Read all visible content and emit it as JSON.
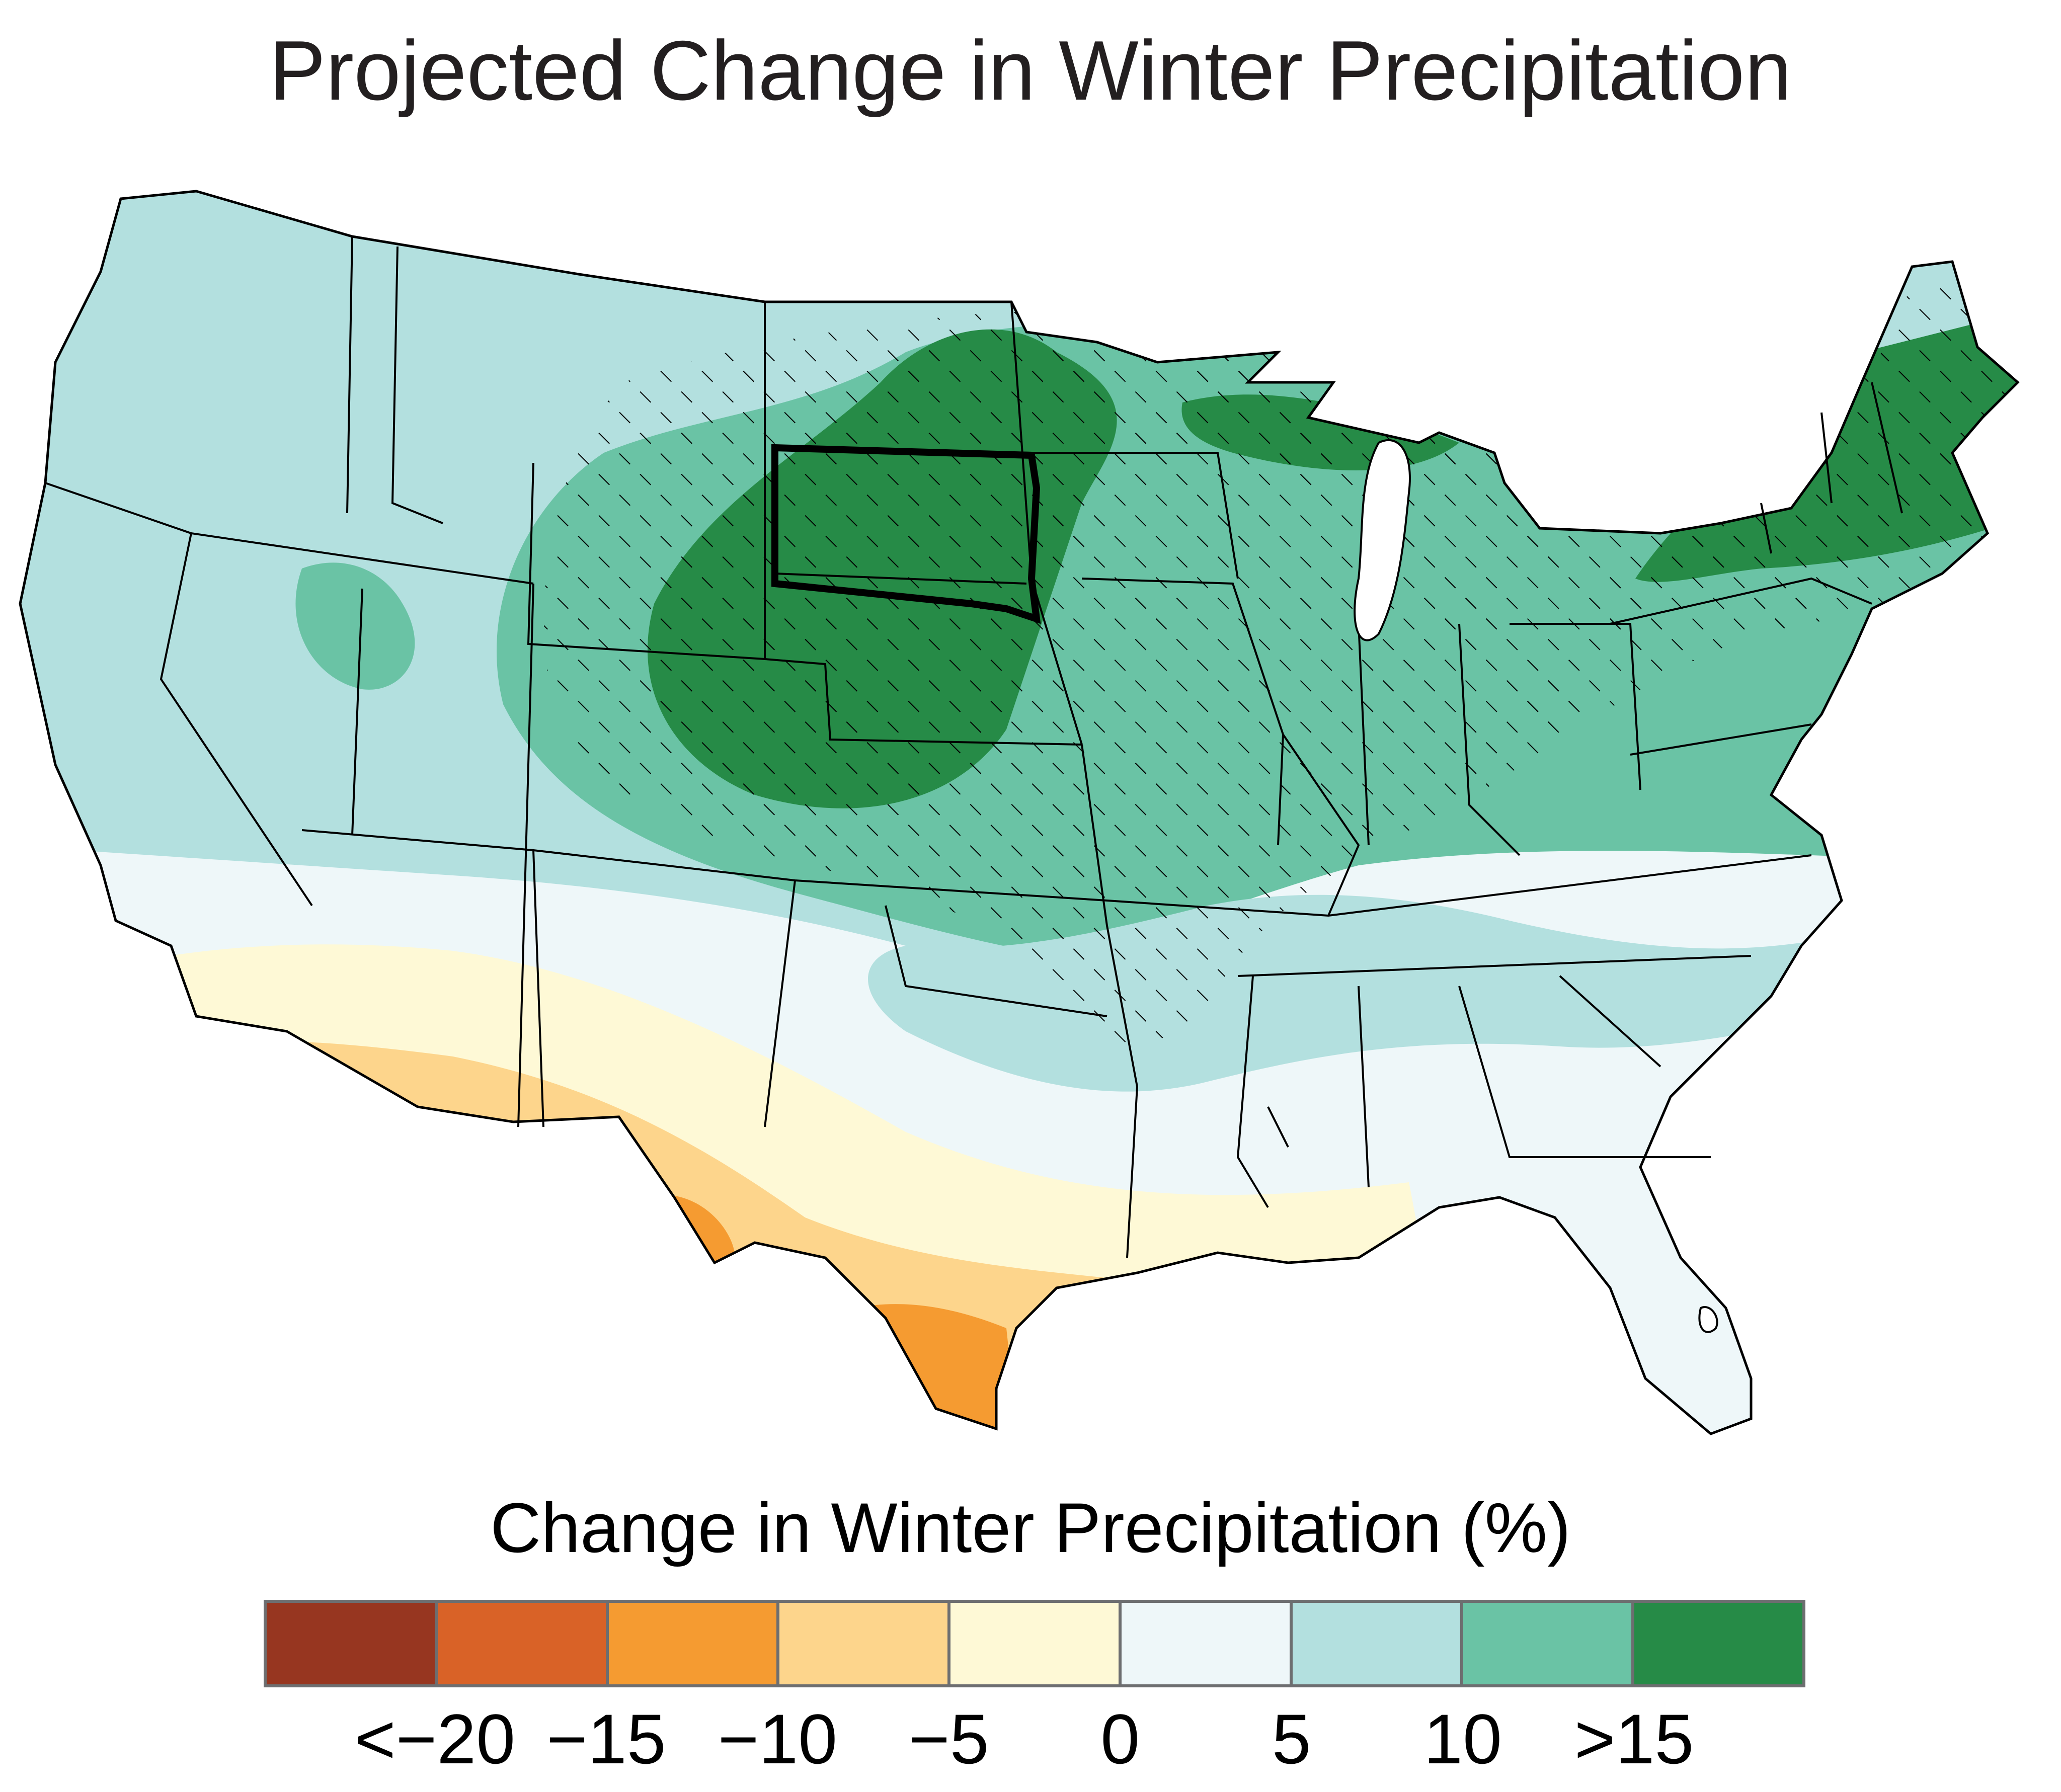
{
  "title": "Projected Change in Winter Precipitation",
  "legend": {
    "title": "Change in Winter Precipitation (%)",
    "colors": [
      "#973620",
      "#d96227",
      "#f59b31",
      "#fdd58c",
      "#fef9d6",
      "#eef7f9",
      "#b3e0df",
      "#6ac3a5",
      "#268b47"
    ],
    "tick_labels": [
      "<−20",
      "−15",
      "−10",
      "−5",
      "0",
      "5",
      "10",
      ">15"
    ]
  },
  "map": {
    "region": "contiguous-united-states",
    "highlighted_state": "south-dakota",
    "hatching_meaning": "hatched-areas-overlay",
    "outline_color": "#000000"
  }
}
